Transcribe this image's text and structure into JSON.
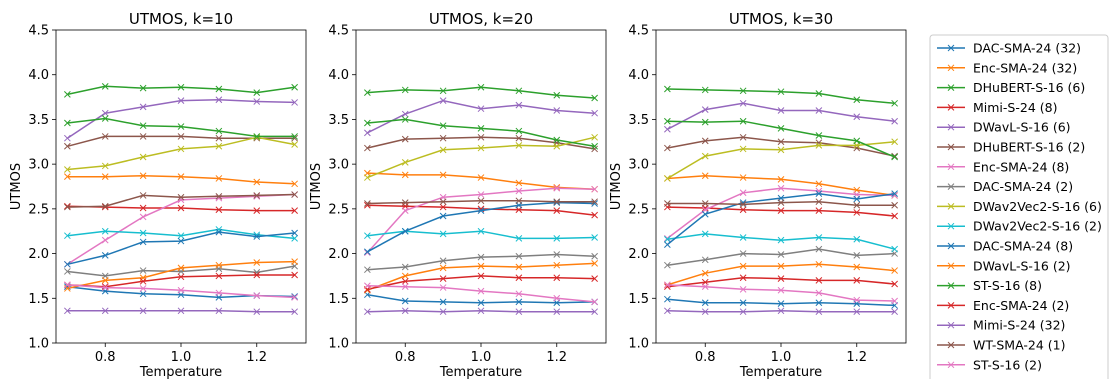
{
  "chart_data": [
    {
      "type": "line",
      "title": "UTMOS, k=10",
      "xlabel": "Temperature",
      "ylabel": "UTMOS",
      "x": [
        0.7,
        0.8,
        0.9,
        1.0,
        1.1,
        1.2,
        1.3
      ],
      "xlim": [
        0.67,
        1.33
      ],
      "ylim": [
        1.0,
        4.5
      ],
      "xticks": [
        "0.8",
        "1.0",
        "1.2"
      ],
      "yticks": [
        "1.0",
        "1.5",
        "2.0",
        "2.5",
        "3.0",
        "3.5",
        "4.0",
        "4.5"
      ],
      "series": [
        {
          "name": "DAC-SMA-24 (32)",
          "values": [
            1.63,
            1.58,
            1.55,
            1.54,
            1.51,
            1.53,
            1.52
          ]
        },
        {
          "name": "Enc-SMA-24 (32)",
          "values": [
            2.86,
            2.86,
            2.87,
            2.86,
            2.84,
            2.8,
            2.78
          ]
        },
        {
          "name": "DHuBERT-S-16 (6)",
          "values": [
            3.78,
            3.87,
            3.85,
            3.86,
            3.84,
            3.8,
            3.86
          ]
        },
        {
          "name": "Mimi-S-24 (8)",
          "values": [
            2.53,
            2.52,
            2.51,
            2.51,
            2.49,
            2.48,
            2.48
          ]
        },
        {
          "name": "DWavL-S-16 (6)",
          "values": [
            3.29,
            3.57,
            3.64,
            3.71,
            3.72,
            3.7,
            3.69
          ]
        },
        {
          "name": "DHuBERT-S-16 (2)",
          "values": [
            3.2,
            3.31,
            3.31,
            3.31,
            3.29,
            3.29,
            3.29
          ]
        },
        {
          "name": "Enc-SMA-24 (8)",
          "values": [
            1.88,
            2.15,
            2.41,
            2.6,
            2.62,
            2.64,
            2.66
          ]
        },
        {
          "name": "DAC-SMA-24 (2)",
          "values": [
            1.8,
            1.75,
            1.81,
            1.8,
            1.83,
            1.79,
            1.86
          ]
        },
        {
          "name": "DWav2Vec2-S-16 (6)",
          "values": [
            2.94,
            2.98,
            3.08,
            3.17,
            3.2,
            3.3,
            3.22
          ]
        },
        {
          "name": "DWav2Vec2-S-16 (2)",
          "values": [
            2.2,
            2.25,
            2.23,
            2.2,
            2.27,
            2.21,
            2.17
          ]
        },
        {
          "name": "DAC-SMA-24 (8)",
          "values": [
            1.88,
            1.98,
            2.13,
            2.14,
            2.24,
            2.19,
            2.23
          ]
        },
        {
          "name": "DWavL-S-16 (2)",
          "values": [
            1.61,
            1.7,
            1.73,
            1.84,
            1.87,
            1.9,
            1.91
          ]
        },
        {
          "name": "ST-S-16 (8)",
          "values": [
            3.46,
            3.51,
            3.43,
            3.42,
            3.37,
            3.31,
            3.31
          ]
        },
        {
          "name": "Enc-SMA-24 (2)",
          "values": [
            1.65,
            1.63,
            1.69,
            1.74,
            1.75,
            1.76,
            1.76
          ]
        },
        {
          "name": "Mimi-S-24 (32)",
          "values": [
            1.36,
            1.36,
            1.36,
            1.36,
            1.36,
            1.35,
            1.35
          ]
        },
        {
          "name": "WT-SMA-24 (1)",
          "values": [
            2.52,
            2.53,
            2.65,
            2.63,
            2.64,
            2.65,
            2.66
          ]
        },
        {
          "name": "ST-S-16 (2)",
          "values": [
            1.65,
            1.62,
            1.61,
            1.59,
            1.56,
            1.53,
            1.51
          ]
        }
      ]
    },
    {
      "type": "line",
      "title": "UTMOS, k=20",
      "xlabel": "Temperature",
      "ylabel": "UTMOS",
      "x": [
        0.7,
        0.8,
        0.9,
        1.0,
        1.1,
        1.2,
        1.3
      ],
      "xlim": [
        0.67,
        1.33
      ],
      "ylim": [
        1.0,
        4.5
      ],
      "xticks": [
        "0.8",
        "1.0",
        "1.2"
      ],
      "yticks": [
        "1.0",
        "1.5",
        "2.0",
        "2.5",
        "3.0",
        "3.5",
        "4.0",
        "4.5"
      ],
      "series": [
        {
          "name": "DAC-SMA-24 (32)",
          "values": [
            1.54,
            1.47,
            1.46,
            1.45,
            1.46,
            1.45,
            1.46
          ]
        },
        {
          "name": "Enc-SMA-24 (32)",
          "values": [
            2.9,
            2.88,
            2.88,
            2.85,
            2.79,
            2.74,
            2.72
          ]
        },
        {
          "name": "DHuBERT-S-16 (6)",
          "values": [
            3.8,
            3.83,
            3.82,
            3.86,
            3.82,
            3.77,
            3.74
          ]
        },
        {
          "name": "Mimi-S-24 (8)",
          "values": [
            2.54,
            2.53,
            2.52,
            2.5,
            2.49,
            2.48,
            2.43
          ]
        },
        {
          "name": "DWavL-S-16 (6)",
          "values": [
            3.35,
            3.56,
            3.71,
            3.62,
            3.66,
            3.6,
            3.57
          ]
        },
        {
          "name": "DHuBERT-S-16 (2)",
          "values": [
            3.18,
            3.28,
            3.29,
            3.3,
            3.29,
            3.24,
            3.17
          ]
        },
        {
          "name": "Enc-SMA-24 (8)",
          "values": [
            2.01,
            2.48,
            2.63,
            2.66,
            2.7,
            2.73,
            2.72
          ]
        },
        {
          "name": "DAC-SMA-24 (2)",
          "values": [
            1.82,
            1.85,
            1.92,
            1.96,
            1.97,
            1.99,
            1.97
          ]
        },
        {
          "name": "DWav2Vec2-S-16 (6)",
          "values": [
            2.85,
            3.02,
            3.16,
            3.18,
            3.21,
            3.2,
            3.3
          ]
        },
        {
          "name": "DWav2Vec2-S-16 (2)",
          "values": [
            2.2,
            2.25,
            2.22,
            2.25,
            2.17,
            2.17,
            2.18
          ]
        },
        {
          "name": "DAC-SMA-24 (8)",
          "values": [
            2.02,
            2.25,
            2.42,
            2.48,
            2.54,
            2.57,
            2.56
          ]
        },
        {
          "name": "DWavL-S-16 (2)",
          "values": [
            1.59,
            1.75,
            1.84,
            1.86,
            1.85,
            1.87,
            1.89
          ]
        },
        {
          "name": "ST-S-16 (8)",
          "values": [
            3.46,
            3.5,
            3.43,
            3.4,
            3.37,
            3.27,
            3.2
          ]
        },
        {
          "name": "Enc-SMA-24 (2)",
          "values": [
            1.6,
            1.69,
            1.72,
            1.75,
            1.73,
            1.73,
            1.72
          ]
        },
        {
          "name": "Mimi-S-24 (32)",
          "values": [
            1.35,
            1.36,
            1.35,
            1.36,
            1.35,
            1.35,
            1.35
          ]
        },
        {
          "name": "WT-SMA-24 (1)",
          "values": [
            2.56,
            2.57,
            2.58,
            2.59,
            2.59,
            2.58,
            2.58
          ]
        },
        {
          "name": "ST-S-16 (2)",
          "values": [
            1.64,
            1.63,
            1.62,
            1.58,
            1.55,
            1.5,
            1.46
          ]
        }
      ]
    },
    {
      "type": "line",
      "title": "UTMOS, k=30",
      "xlabel": "Temperature",
      "ylabel": "UTMOS",
      "x": [
        0.7,
        0.8,
        0.9,
        1.0,
        1.1,
        1.2,
        1.3
      ],
      "xlim": [
        0.67,
        1.33
      ],
      "ylim": [
        1.0,
        4.5
      ],
      "xticks": [
        "0.8",
        "1.0",
        "1.2"
      ],
      "yticks": [
        "1.0",
        "1.5",
        "2.0",
        "2.5",
        "3.0",
        "3.5",
        "4.0",
        "4.5"
      ],
      "series": [
        {
          "name": "DAC-SMA-24 (32)",
          "values": [
            1.49,
            1.45,
            1.45,
            1.44,
            1.45,
            1.44,
            1.42
          ]
        },
        {
          "name": "Enc-SMA-24 (32)",
          "values": [
            2.84,
            2.87,
            2.85,
            2.83,
            2.78,
            2.71,
            2.65
          ]
        },
        {
          "name": "DHuBERT-S-16 (6)",
          "values": [
            3.84,
            3.83,
            3.82,
            3.81,
            3.79,
            3.72,
            3.68
          ]
        },
        {
          "name": "Mimi-S-24 (8)",
          "values": [
            2.52,
            2.51,
            2.49,
            2.48,
            2.48,
            2.46,
            2.42
          ]
        },
        {
          "name": "DWavL-S-16 (6)",
          "values": [
            3.39,
            3.61,
            3.68,
            3.6,
            3.6,
            3.53,
            3.48
          ]
        },
        {
          "name": "DHuBERT-S-16 (2)",
          "values": [
            3.18,
            3.26,
            3.3,
            3.25,
            3.24,
            3.18,
            3.09
          ]
        },
        {
          "name": "Enc-SMA-24 (8)",
          "values": [
            2.17,
            2.49,
            2.68,
            2.73,
            2.7,
            2.66,
            2.65
          ]
        },
        {
          "name": "DAC-SMA-24 (2)",
          "values": [
            1.87,
            1.93,
            2.0,
            1.99,
            2.05,
            1.98,
            2.0
          ]
        },
        {
          "name": "DWav2Vec2-S-16 (6)",
          "values": [
            2.84,
            3.09,
            3.17,
            3.16,
            3.21,
            3.21,
            3.25
          ]
        },
        {
          "name": "DWav2Vec2-S-16 (2)",
          "values": [
            2.16,
            2.22,
            2.18,
            2.15,
            2.18,
            2.16,
            2.05
          ]
        },
        {
          "name": "DAC-SMA-24 (8)",
          "values": [
            2.1,
            2.44,
            2.57,
            2.62,
            2.67,
            2.61,
            2.67
          ]
        },
        {
          "name": "DWavL-S-16 (2)",
          "values": [
            1.65,
            1.78,
            1.86,
            1.86,
            1.88,
            1.85,
            1.81
          ]
        },
        {
          "name": "ST-S-16 (8)",
          "values": [
            3.48,
            3.47,
            3.48,
            3.4,
            3.32,
            3.26,
            3.08
          ]
        },
        {
          "name": "Enc-SMA-24 (2)",
          "values": [
            1.63,
            1.68,
            1.73,
            1.72,
            1.7,
            1.7,
            1.66
          ]
        },
        {
          "name": "Mimi-S-24 (32)",
          "values": [
            1.36,
            1.35,
            1.35,
            1.36,
            1.35,
            1.35,
            1.35
          ]
        },
        {
          "name": "WT-SMA-24 (1)",
          "values": [
            2.56,
            2.56,
            2.55,
            2.57,
            2.58,
            2.54,
            2.54
          ]
        },
        {
          "name": "ST-S-16 (2)",
          "values": [
            1.65,
            1.63,
            1.6,
            1.59,
            1.56,
            1.48,
            1.47
          ]
        }
      ]
    }
  ],
  "legend": {
    "placement": "right",
    "entries": [
      {
        "name": "DAC-SMA-24 (32)",
        "color": "#1f77b4"
      },
      {
        "name": "Enc-SMA-24 (32)",
        "color": "#ff7f0e"
      },
      {
        "name": "DHuBERT-S-16 (6)",
        "color": "#2ca02c"
      },
      {
        "name": "Mimi-S-24 (8)",
        "color": "#d62728"
      },
      {
        "name": "DWavL-S-16 (6)",
        "color": "#9467bd"
      },
      {
        "name": "DHuBERT-S-16 (2)",
        "color": "#8c564b"
      },
      {
        "name": "Enc-SMA-24 (8)",
        "color": "#e377c2"
      },
      {
        "name": "DAC-SMA-24 (2)",
        "color": "#7f7f7f"
      },
      {
        "name": "DWav2Vec2-S-16 (6)",
        "color": "#bcbd22"
      },
      {
        "name": "DWav2Vec2-S-16 (2)",
        "color": "#17becf"
      },
      {
        "name": "DAC-SMA-24 (8)",
        "color": "#1f77b4"
      },
      {
        "name": "DWavL-S-16 (2)",
        "color": "#ff7f0e"
      },
      {
        "name": "ST-S-16 (8)",
        "color": "#2ca02c"
      },
      {
        "name": "Enc-SMA-24 (2)",
        "color": "#d62728"
      },
      {
        "name": "Mimi-S-24 (32)",
        "color": "#9467bd"
      },
      {
        "name": "WT-SMA-24 (1)",
        "color": "#8c564b"
      },
      {
        "name": "ST-S-16 (2)",
        "color": "#e377c2"
      }
    ],
    "marker": "x"
  }
}
